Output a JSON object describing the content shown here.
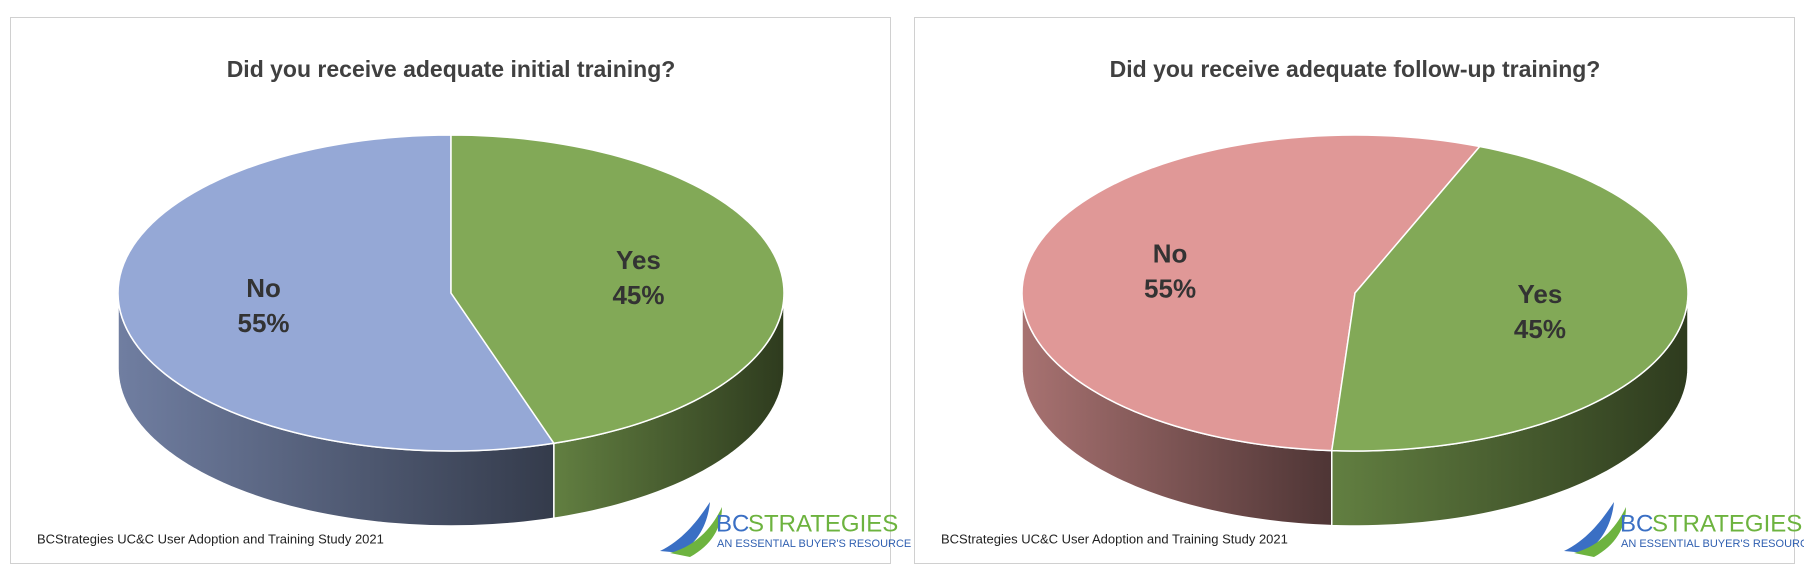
{
  "chart_data": [
    {
      "type": "pie",
      "title": "Did you receive adequate initial training?",
      "categories": [
        "No",
        "Yes"
      ],
      "values": [
        55,
        45
      ],
      "value_labels": [
        "55%",
        "45%"
      ],
      "colors": [
        "#95a8d6",
        "#82a957"
      ],
      "source": "BCStrategies UC&C User Adoption and Training Study 2021",
      "logo": {
        "brand": "BC",
        "brand2": "STRATEGIES",
        "tagline": "AN ESSENTIAL BUYER'S RESOURCE"
      }
    },
    {
      "type": "pie",
      "title": "Did you receive adequate follow-up training?",
      "categories": [
        "No",
        "Yes"
      ],
      "values": [
        55,
        45
      ],
      "value_labels": [
        "55%",
        "45%"
      ],
      "colors": [
        "#e09897",
        "#82a957"
      ],
      "source": "BCStrategies UC&C User Adoption and Training Study 2021",
      "logo": {
        "brand": "BC",
        "brand2": "STRATEGIES",
        "tagline": "AN ESSENTIAL BUYER'S RESOURCE"
      }
    }
  ]
}
